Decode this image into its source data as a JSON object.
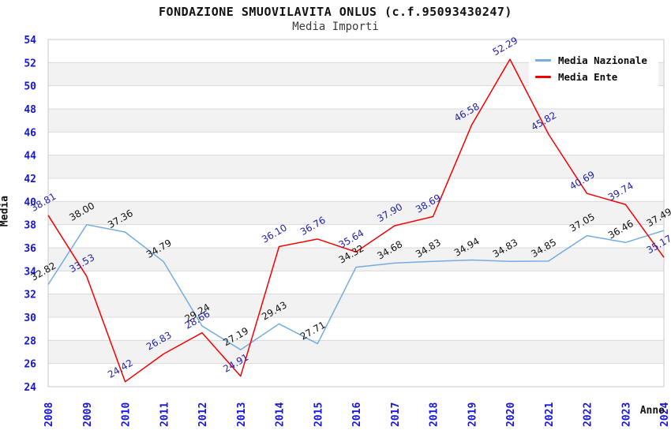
{
  "title": "FONDAZIONE SMUOVILAVITA ONLUS (c.f.95093430247)",
  "subtitle": "Media Importi",
  "chart_data": {
    "type": "line",
    "title": "FONDAZIONE SMUOVILAVITA ONLUS (c.f.95093430247)",
    "subtitle": "Media Importi",
    "xlabel": "Anno",
    "ylabel": "Media",
    "ylim": [
      24,
      54
    ],
    "ytick_step": 2,
    "grid": "horizontal-bands",
    "legend_position": "top-right",
    "categories": [
      2008,
      2009,
      2010,
      2011,
      2012,
      2013,
      2014,
      2015,
      2016,
      2017,
      2018,
      2019,
      2020,
      2021,
      2022,
      2023,
      2024
    ],
    "series": [
      {
        "name": "Media Nazionale",
        "color": "#74ace0",
        "label_color": "#111111",
        "values": [
          32.82,
          38.0,
          37.36,
          34.79,
          29.24,
          27.19,
          29.43,
          27.71,
          34.32,
          34.68,
          34.83,
          34.94,
          34.83,
          34.85,
          37.05,
          36.46,
          37.49
        ]
      },
      {
        "name": "Media Ente",
        "color": "#f50000",
        "label_color": "#2121ad",
        "values": [
          38.81,
          33.53,
          24.42,
          26.83,
          28.66,
          24.91,
          36.1,
          36.76,
          35.64,
          37.9,
          38.69,
          46.58,
          52.29,
          45.82,
          40.69,
          39.74,
          35.17
        ]
      }
    ],
    "colors": {
      "band_fill": "#f2f2f2",
      "gridline": "#d9d9d9",
      "plot_border": "#c9c9c9",
      "tick_label": "#1515dd"
    }
  }
}
